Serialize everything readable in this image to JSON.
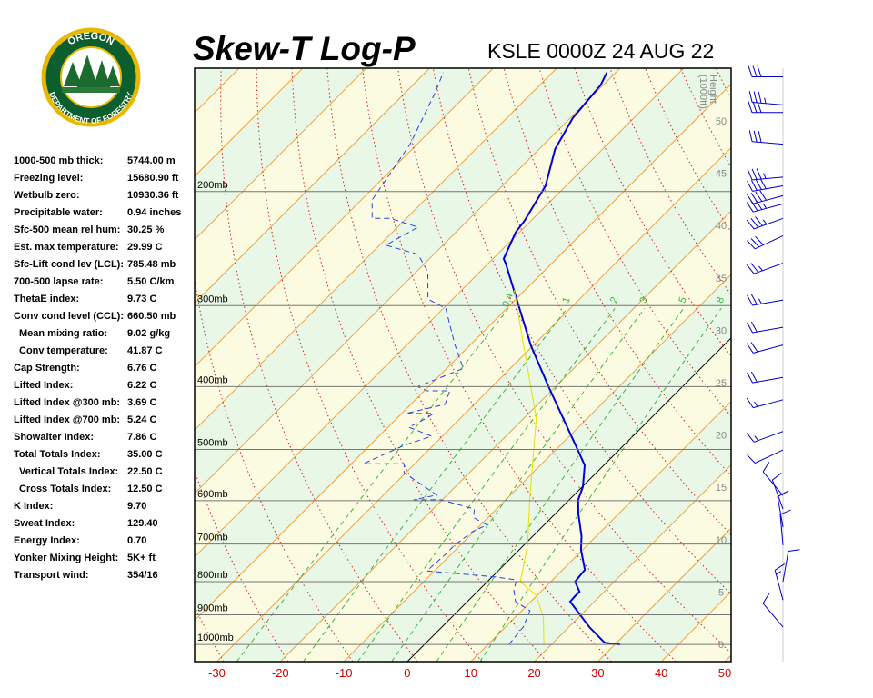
{
  "logo": {
    "top": "OREGON",
    "bottom": "DEPARTMENT OF FORESTRY"
  },
  "stats": [
    [
      "1000-500 mb thick:",
      "5744.00 m"
    ],
    [
      "Freezing level:",
      "15680.90 ft"
    ],
    [
      "Wetbulb zero:",
      "10930.36 ft"
    ],
    [
      "Precipitable water:",
      "0.94 inches"
    ],
    [
      "Sfc-500 mean rel hum:",
      "30.25 %"
    ],
    [
      "Est. max temperature:",
      "29.99 C"
    ],
    [
      "Sfc-Lift cond lev (LCL):",
      "785.48 mb"
    ],
    [
      "700-500 lapse rate:",
      "5.50 C/km"
    ],
    [
      "ThetaE index:",
      "9.73 C"
    ],
    [
      "Conv cond level (CCL):",
      "660.50 mb"
    ],
    [
      "Mean mixing ratio:",
      "9.02 g/kg"
    ],
    [
      "Conv temperature:",
      "41.87 C"
    ],
    [
      "Cap Strength:",
      "6.76 C"
    ],
    [
      "Lifted Index:",
      "6.22 C"
    ],
    [
      "Lifted Index @300 mb:",
      "3.69 C"
    ],
    [
      "Lifted Index @700 mb:",
      "5.24 C"
    ],
    [
      "Showalter Index:",
      "7.86 C"
    ],
    [
      "Total Totals Index:",
      "35.00 C"
    ],
    [
      "Vertical Totals Index:",
      "22.50 C"
    ],
    [
      "Cross Totals Index:",
      "12.50 C"
    ],
    [
      "K Index:",
      "9.70"
    ],
    [
      "Sweat Index:",
      "129.40"
    ],
    [
      "Energy Index:",
      "0.70"
    ],
    [
      "Yonker Mixing Height:",
      "5K+ ft"
    ],
    [
      "Transport wind:",
      "354/16"
    ]
  ],
  "chart_data": {
    "type": "skewt",
    "title": "Skew-T Log-P",
    "subtitle": "KSLE 0000Z 24 AUG 22",
    "xlim": [
      -33.5,
      51
    ],
    "xticks": [
      -30,
      -20,
      -10,
      0,
      10,
      20,
      30,
      40,
      50
    ],
    "ylim": [
      1063,
      129
    ],
    "log_y": true,
    "yticks": [
      {
        "value": 1000,
        "label": "1000mb"
      },
      {
        "value": 900,
        "label": "900mb"
      },
      {
        "value": 800,
        "label": "800mb"
      },
      {
        "value": 700,
        "label": "700mb"
      },
      {
        "value": 600,
        "label": "600mb"
      },
      {
        "value": 500,
        "label": "500mb"
      },
      {
        "value": 400,
        "label": "400mb"
      },
      {
        "value": 300,
        "label": "300mb"
      },
      {
        "value": 200,
        "label": "200mb"
      }
    ],
    "y2_label": [
      "Height",
      "(1000ft)"
    ],
    "y2lim": [
      -1.65,
      55.04
    ],
    "y2ticks": [
      0,
      5,
      10,
      15,
      20,
      25,
      30,
      35,
      40,
      45,
      50
    ],
    "mixing_ratio": {
      "color": "#3cb43c",
      "values": [
        0.4,
        1,
        2,
        3,
        5,
        8
      ]
    },
    "series": [
      {
        "color": "#0000dd",
        "pressure": [
          1000,
          994,
          940,
          859,
          843,
          829,
          800,
          767,
          714,
          681,
          628,
          598,
          571,
          529,
          501,
          400,
          346,
          258,
          254,
          231,
          222,
          196,
          172,
          154,
          137,
          131
        ],
        "values": [
          30.8,
          28.1,
          23.2,
          16.2,
          16.1,
          16.1,
          13.8,
          13.5,
          9.7,
          7.7,
          3.6,
          1.4,
          0.1,
          -3.0,
          -6.5,
          -21.1,
          -30.3,
          -47.3,
          -48.3,
          -50.6,
          -51.0,
          -53.2,
          -57.5,
          -59.6,
          -60.4,
          -61.4
        ]
      },
      {
        "color": "#2a40e0",
        "dashed": true,
        "pressure": [
          1000,
          940,
          887,
          859,
          826,
          795,
          787,
          770,
          726,
          703,
          669,
          654,
          637,
          618,
          598,
          598,
          588,
          543,
          526,
          526,
          493,
          477,
          462,
          447,
          440,
          440,
          426,
          406,
          406,
          400,
          375,
          345,
          303,
          293,
          266,
          250,
          242,
          227,
          220,
          220,
          206,
          196,
          169,
          140,
          131
        ],
        "values": [
          13.3,
          12.8,
          11.3,
          7.6,
          5.6,
          4.3,
          0.6,
          -11.2,
          -10.9,
          -10.9,
          -10.2,
          -9.0,
          -12.3,
          -13.5,
          -20.2,
          -24.5,
          -21.6,
          -30.3,
          -31.7,
          -38.1,
          -34.6,
          -31.7,
          -36.7,
          -35.3,
          -35.0,
          -39.3,
          -34.6,
          -36.0,
          -39.6,
          -41.7,
          -37.4,
          -42.4,
          -49.6,
          -53.9,
          -58.2,
          -62.5,
          -69.0,
          -66.8,
          -72.5,
          -75.4,
          -78.3,
          -79.0,
          -81.1,
          -85.4,
          -87.2
        ]
      },
      {
        "color": "#e6e000",
        "pressure": [
          1000,
          911,
          840,
          800,
          703,
          594,
          447,
          369,
          284
        ],
        "values": [
          18.8,
          14.6,
          9.9,
          5.2,
          0.6,
          -6.5,
          -18.1,
          -28.1,
          -41.7
        ]
      }
    ],
    "winds": {
      "color": "#0000cc",
      "pressure": [
        133,
        147,
        151,
        169,
        190,
        196,
        203,
        209,
        220,
        234,
        258,
        294,
        324,
        345,
        387,
        419,
        469,
        501,
        589,
        618,
        659,
        703,
        800,
        854,
        940
      ],
      "direction": [
        270,
        275,
        270,
        275,
        265,
        260,
        255,
        255,
        250,
        245,
        250,
        260,
        260,
        255,
        260,
        255,
        250,
        245,
        320,
        340,
        350,
        355,
        10,
        345,
        320
      ],
      "speed": [
        30,
        35,
        30,
        30,
        35,
        40,
        40,
        35,
        35,
        30,
        25,
        25,
        20,
        20,
        20,
        15,
        15,
        10,
        10,
        10,
        10,
        10,
        10,
        15,
        10
      ]
    }
  }
}
